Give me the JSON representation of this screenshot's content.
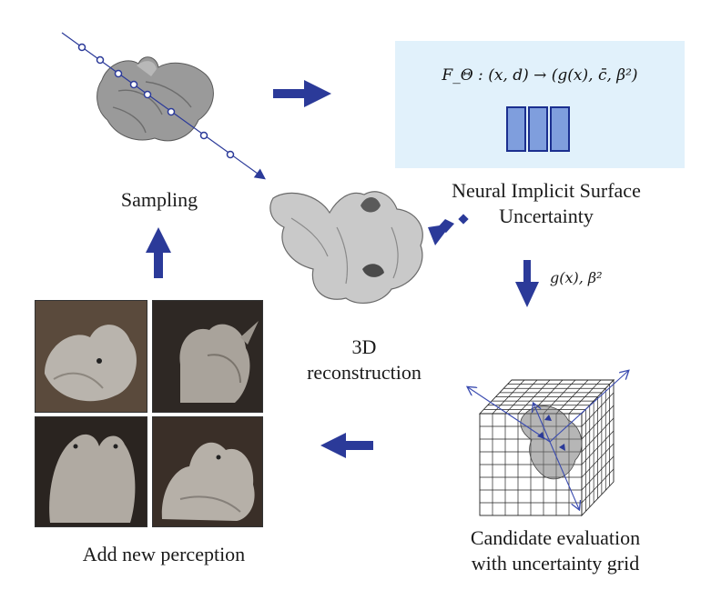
{
  "labels": {
    "sampling": "Sampling",
    "nis_line1": "Neural Implicit Surface",
    "nis_line2": "Uncertainty",
    "recon_line1": "3D",
    "recon_line2": "reconstruction",
    "cand_line1": "Candidate evaluation",
    "cand_line2": "with uncertainty grid",
    "add": "Add new perception"
  },
  "formula": "F_Θ : (x, d) → (g(x), c̄, β²)",
  "edge_label": "g(x), β²",
  "colors": {
    "arrow": "#2b3a99",
    "box_fill": "#e1f1fb",
    "block_fill": "#7f9edd",
    "photo_bg": "#4a3e35",
    "mesh": "#c4c4c4"
  }
}
